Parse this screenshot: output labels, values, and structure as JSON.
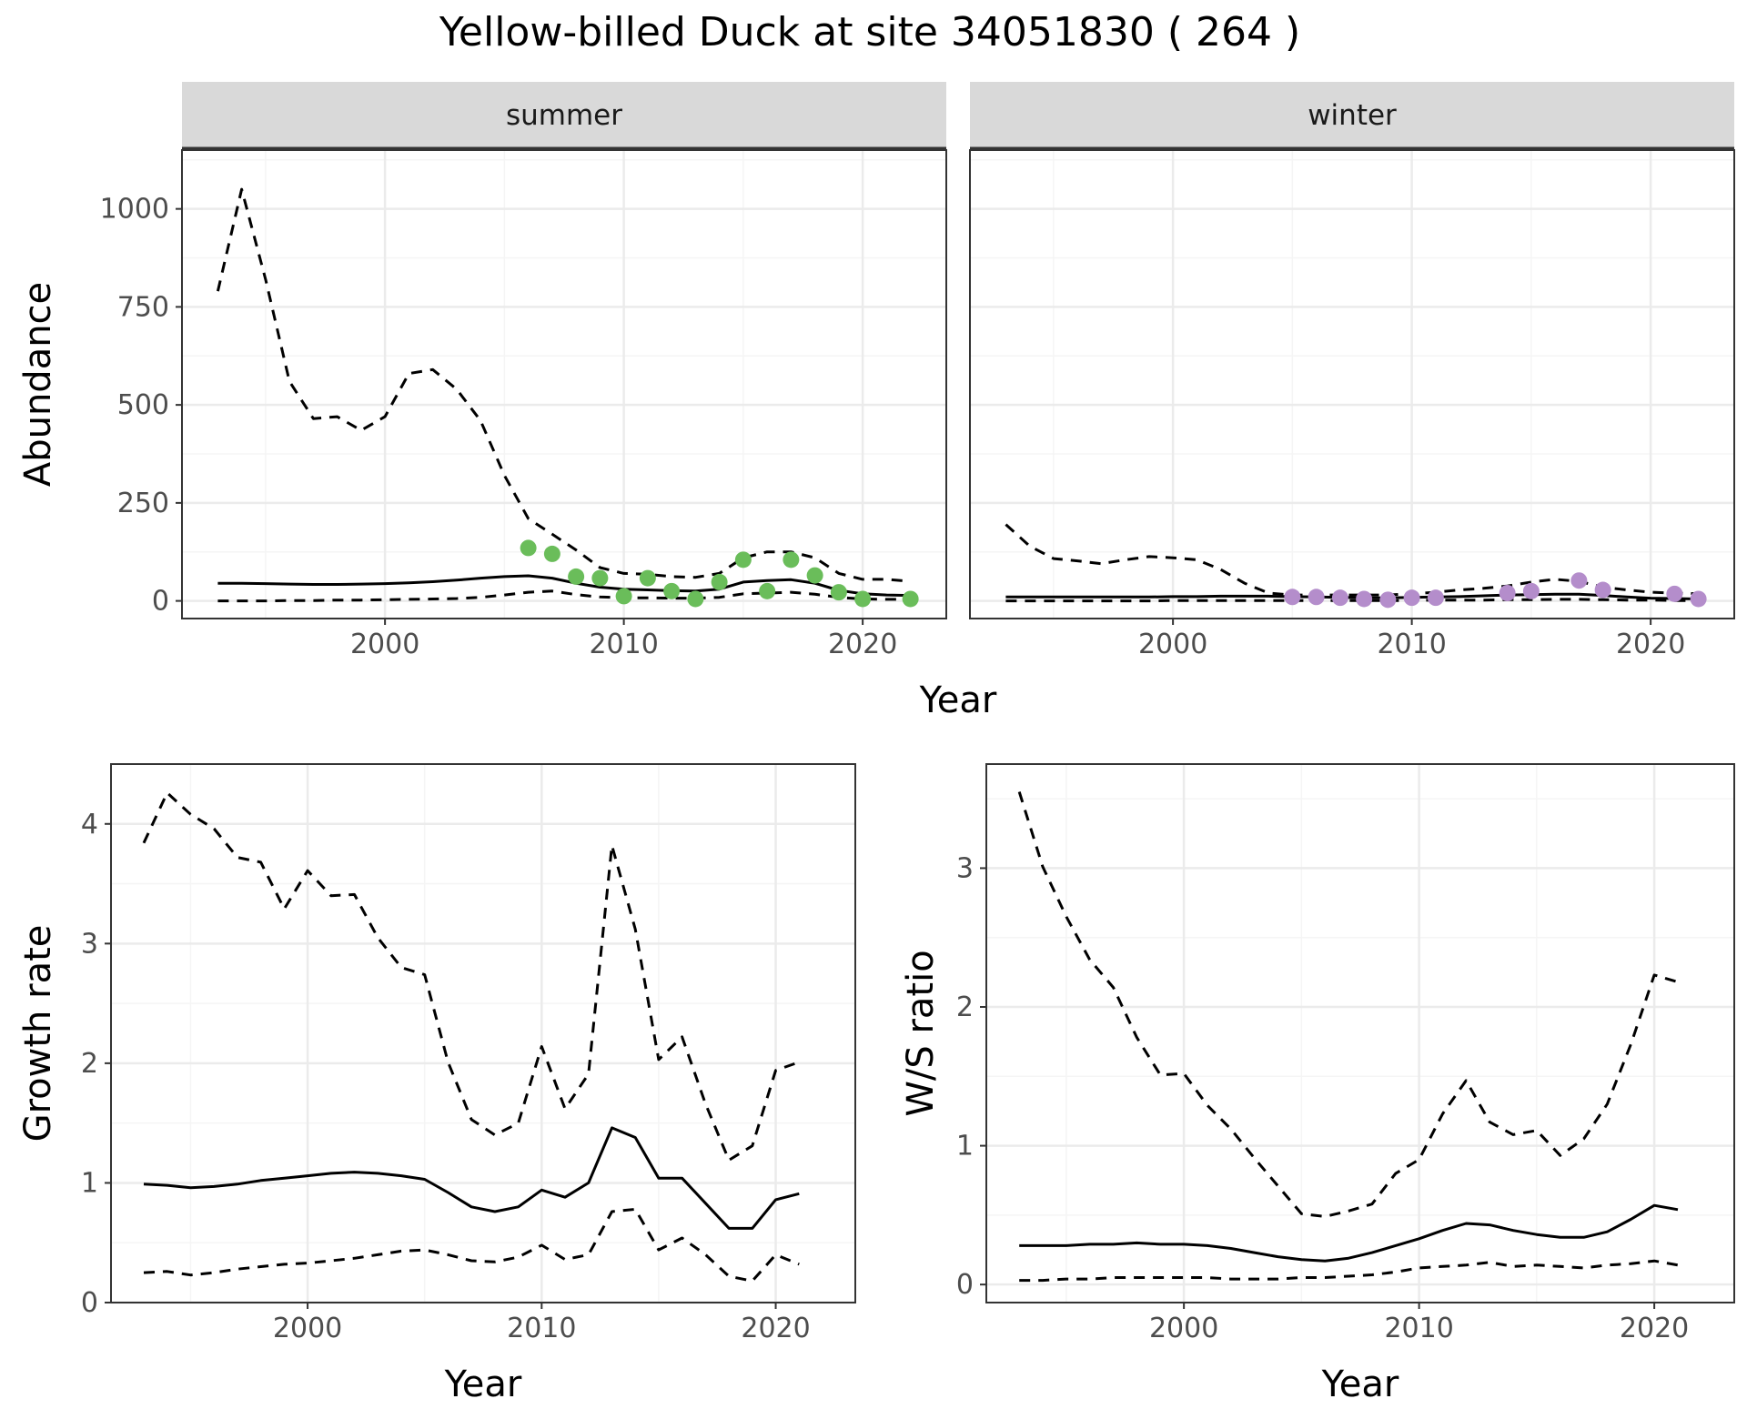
{
  "title": "Yellow-billed Duck at site 34051830 ( 264 )",
  "colors": {
    "summer_points": "#6ABD5A",
    "winter_points": "#B48DCB",
    "grid_major": "#EBEBEB",
    "grid_minor": "#F5F5F5",
    "strip_fill": "#D9D9D9",
    "line": "#000000"
  },
  "chart_data": [
    {
      "type": "line",
      "panel": "abundance",
      "facets": [
        "summer",
        "winter"
      ],
      "xlabel": "Year",
      "ylabel": "Abundance",
      "xlim": [
        1991.5,
        2023.5
      ],
      "ylim": [
        -45,
        1150
      ],
      "xticks": [
        2000,
        2010,
        2020
      ],
      "yticks": [
        0,
        250,
        500,
        750,
        1000
      ],
      "grid": true,
      "series": [
        {
          "facet": "summer",
          "style": "solid",
          "x": [
            1993,
            1994,
            1995,
            1996,
            1997,
            1998,
            1999,
            2000,
            2001,
            2002,
            2003,
            2004,
            2005,
            2006,
            2007,
            2008,
            2009,
            2010,
            2011,
            2012,
            2013,
            2014,
            2015,
            2016,
            2017,
            2018,
            2019,
            2020,
            2021,
            2022
          ],
          "y": [
            45,
            45,
            44,
            43,
            42,
            42,
            43,
            44,
            46,
            49,
            53,
            58,
            62,
            64,
            58,
            45,
            35,
            30,
            28,
            26,
            25,
            30,
            48,
            52,
            54,
            45,
            27,
            18,
            15,
            14
          ]
        },
        {
          "facet": "summer",
          "style": "dashed",
          "x": [
            1993,
            1994,
            1995,
            1996,
            1997,
            1998,
            1999,
            2000,
            2001,
            2002,
            2003,
            2004,
            2005,
            2006,
            2007,
            2008,
            2009,
            2010,
            2011,
            2012,
            2013,
            2014,
            2015,
            2016,
            2017,
            2018,
            2019,
            2020,
            2021,
            2022
          ],
          "y": [
            790,
            1050,
            820,
            560,
            465,
            470,
            435,
            470,
            580,
            590,
            540,
            460,
            320,
            210,
            170,
            130,
            85,
            70,
            68,
            62,
            60,
            70,
            110,
            125,
            125,
            110,
            70,
            55,
            55,
            50
          ]
        },
        {
          "facet": "summer",
          "style": "dashed",
          "x": [
            1993,
            1994,
            1995,
            1996,
            1997,
            1998,
            1999,
            2000,
            2001,
            2002,
            2003,
            2004,
            2005,
            2006,
            2007,
            2008,
            2009,
            2010,
            2011,
            2012,
            2013,
            2014,
            2015,
            2016,
            2017,
            2018,
            2019,
            2020,
            2021,
            2022
          ],
          "y": [
            0,
            0,
            0,
            1,
            1,
            2,
            2,
            3,
            4,
            5,
            6,
            9,
            15,
            22,
            25,
            16,
            10,
            8,
            8,
            7,
            7,
            9,
            18,
            20,
            22,
            17,
            9,
            5,
            4,
            4
          ]
        },
        {
          "facet": "winter",
          "style": "solid",
          "x": [
            1993,
            1994,
            1995,
            1996,
            1997,
            1998,
            1999,
            2000,
            2001,
            2002,
            2003,
            2004,
            2005,
            2006,
            2007,
            2008,
            2009,
            2010,
            2011,
            2012,
            2013,
            2014,
            2015,
            2016,
            2017,
            2018,
            2019,
            2020,
            2021,
            2022
          ],
          "y": [
            10,
            10,
            10,
            10,
            10,
            10,
            10,
            11,
            11,
            12,
            12,
            12,
            11,
            10,
            9,
            8,
            8,
            9,
            10,
            11,
            13,
            15,
            16,
            17,
            17,
            14,
            10,
            7,
            6,
            5
          ]
        },
        {
          "facet": "winter",
          "style": "dashed",
          "x": [
            1993,
            1994,
            1995,
            1996,
            1997,
            1998,
            1999,
            2000,
            2001,
            2002,
            2003,
            2004,
            2005,
            2006,
            2007,
            2008,
            2009,
            2010,
            2011,
            2012,
            2013,
            2014,
            2015,
            2016,
            2017,
            2018,
            2019,
            2020,
            2021,
            2022
          ],
          "y": [
            195,
            140,
            108,
            102,
            95,
            105,
            113,
            110,
            105,
            80,
            45,
            20,
            15,
            15,
            15,
            15,
            15,
            18,
            22,
            28,
            32,
            38,
            48,
            55,
            50,
            35,
            28,
            22,
            20,
            18
          ]
        },
        {
          "facet": "winter",
          "style": "dashed",
          "x": [
            1993,
            1994,
            1995,
            1996,
            1997,
            1998,
            1999,
            2000,
            2001,
            2002,
            2003,
            2004,
            2005,
            2006,
            2007,
            2008,
            2009,
            2010,
            2011,
            2012,
            2013,
            2014,
            2015,
            2016,
            2017,
            2018,
            2019,
            2020,
            2021,
            2022
          ],
          "y": [
            0,
            0,
            0,
            0,
            0,
            0,
            0,
            1,
            1,
            1,
            1,
            1,
            1,
            1,
            1,
            1,
            1,
            1,
            2,
            2,
            2,
            3,
            3,
            4,
            4,
            3,
            2,
            2,
            1,
            1
          ]
        }
      ],
      "points": [
        {
          "facet": "summer",
          "x": [
            2006,
            2007,
            2008,
            2009,
            2010,
            2011,
            2012,
            2013,
            2014,
            2015,
            2016,
            2017,
            2018,
            2019,
            2020,
            2022
          ],
          "y": [
            135,
            120,
            62,
            58,
            12,
            58,
            25,
            5,
            48,
            105,
            25,
            105,
            65,
            22,
            5,
            5
          ]
        },
        {
          "facet": "winter",
          "x": [
            2005,
            2006,
            2007,
            2008,
            2009,
            2010,
            2011,
            2014,
            2015,
            2017,
            2018,
            2021,
            2022
          ],
          "y": [
            10,
            10,
            8,
            5,
            3,
            8,
            8,
            20,
            25,
            52,
            28,
            18,
            5
          ]
        }
      ]
    },
    {
      "type": "line",
      "panel": "growth",
      "xlabel": "Year",
      "ylabel": "Growth rate",
      "xlim": [
        1991.6,
        2023.4
      ],
      "ylim": [
        0,
        4.5
      ],
      "xticks": [
        2000,
        2010,
        2020
      ],
      "yticks": [
        0,
        1,
        2,
        3,
        4
      ],
      "grid": true,
      "series": [
        {
          "style": "solid",
          "x": [
            1993,
            1994,
            1995,
            1996,
            1997,
            1998,
            1999,
            2000,
            2001,
            2002,
            2003,
            2004,
            2005,
            2006,
            2007,
            2008,
            2009,
            2010,
            2011,
            2012,
            2013,
            2014,
            2015,
            2016,
            2017,
            2018,
            2019,
            2020,
            2021
          ],
          "y": [
            0.99,
            0.98,
            0.96,
            0.97,
            0.99,
            1.02,
            1.04,
            1.06,
            1.08,
            1.09,
            1.08,
            1.06,
            1.03,
            0.92,
            0.8,
            0.76,
            0.8,
            0.94,
            0.88,
            1.0,
            1.46,
            1.38,
            1.04,
            1.04,
            0.83,
            0.62,
            0.62,
            0.86,
            0.91
          ]
        },
        {
          "style": "dashed",
          "x": [
            1993,
            1994,
            1995,
            1996,
            1997,
            1998,
            1999,
            2000,
            2001,
            2002,
            2003,
            2004,
            2005,
            2006,
            2007,
            2008,
            2009,
            2010,
            2011,
            2012,
            2013,
            2014,
            2015,
            2016,
            2017,
            2018,
            2019,
            2020,
            2021
          ],
          "y": [
            3.84,
            4.26,
            4.08,
            3.96,
            3.72,
            3.68,
            3.29,
            3.61,
            3.4,
            3.41,
            3.05,
            2.8,
            2.74,
            2.01,
            1.53,
            1.4,
            1.5,
            2.14,
            1.62,
            1.91,
            3.82,
            3.12,
            2.03,
            2.22,
            1.66,
            1.19,
            1.31,
            1.94,
            2.01
          ]
        },
        {
          "style": "dashed",
          "x": [
            1993,
            1994,
            1995,
            1996,
            1997,
            1998,
            1999,
            2000,
            2001,
            2002,
            2003,
            2004,
            2005,
            2006,
            2007,
            2008,
            2009,
            2010,
            2011,
            2012,
            2013,
            2014,
            2015,
            2016,
            2017,
            2018,
            2019,
            2020,
            2021
          ],
          "y": [
            0.25,
            0.26,
            0.23,
            0.25,
            0.28,
            0.3,
            0.32,
            0.33,
            0.35,
            0.37,
            0.4,
            0.43,
            0.44,
            0.4,
            0.35,
            0.34,
            0.38,
            0.48,
            0.36,
            0.4,
            0.76,
            0.78,
            0.44,
            0.54,
            0.4,
            0.22,
            0.18,
            0.4,
            0.32
          ]
        }
      ]
    },
    {
      "type": "line",
      "panel": "ratio",
      "xlabel": "Year",
      "ylabel": "W/S ratio",
      "xlim": [
        1991.6,
        2023.4
      ],
      "ylim": [
        -0.13,
        3.75
      ],
      "xticks": [
        2000,
        2010,
        2020
      ],
      "yticks": [
        0,
        1,
        2,
        3
      ],
      "grid": true,
      "series": [
        {
          "style": "solid",
          "x": [
            1993,
            1994,
            1995,
            1996,
            1997,
            1998,
            1999,
            2000,
            2001,
            2002,
            2003,
            2004,
            2005,
            2006,
            2007,
            2008,
            2009,
            2010,
            2011,
            2012,
            2013,
            2014,
            2015,
            2016,
            2017,
            2018,
            2019,
            2020,
            2021
          ],
          "y": [
            0.28,
            0.28,
            0.28,
            0.29,
            0.29,
            0.3,
            0.29,
            0.29,
            0.28,
            0.26,
            0.23,
            0.2,
            0.18,
            0.17,
            0.19,
            0.23,
            0.28,
            0.33,
            0.39,
            0.44,
            0.43,
            0.39,
            0.36,
            0.34,
            0.34,
            0.38,
            0.47,
            0.57,
            0.54
          ]
        },
        {
          "style": "dashed",
          "x": [
            1993,
            1994,
            1995,
            1996,
            1997,
            1998,
            1999,
            2000,
            2001,
            2002,
            2003,
            2004,
            2005,
            2006,
            2007,
            2008,
            2009,
            2010,
            2011,
            2012,
            2013,
            2014,
            2015,
            2016,
            2017,
            2018,
            2019,
            2020,
            2021
          ],
          "y": [
            3.55,
            3.01,
            2.65,
            2.34,
            2.14,
            1.78,
            1.51,
            1.52,
            1.29,
            1.12,
            0.91,
            0.71,
            0.51,
            0.49,
            0.53,
            0.58,
            0.8,
            0.9,
            1.23,
            1.47,
            1.17,
            1.08,
            1.11,
            0.93,
            1.05,
            1.3,
            1.73,
            2.23,
            2.18
          ]
        },
        {
          "style": "dashed",
          "x": [
            1993,
            1994,
            1995,
            1996,
            1997,
            1998,
            1999,
            2000,
            2001,
            2002,
            2003,
            2004,
            2005,
            2006,
            2007,
            2008,
            2009,
            2010,
            2011,
            2012,
            2013,
            2014,
            2015,
            2016,
            2017,
            2018,
            2019,
            2020,
            2021
          ],
          "y": [
            0.03,
            0.03,
            0.04,
            0.04,
            0.05,
            0.05,
            0.05,
            0.05,
            0.05,
            0.04,
            0.04,
            0.04,
            0.05,
            0.05,
            0.06,
            0.07,
            0.09,
            0.12,
            0.13,
            0.14,
            0.16,
            0.13,
            0.14,
            0.13,
            0.12,
            0.14,
            0.15,
            0.17,
            0.14
          ]
        }
      ]
    }
  ]
}
